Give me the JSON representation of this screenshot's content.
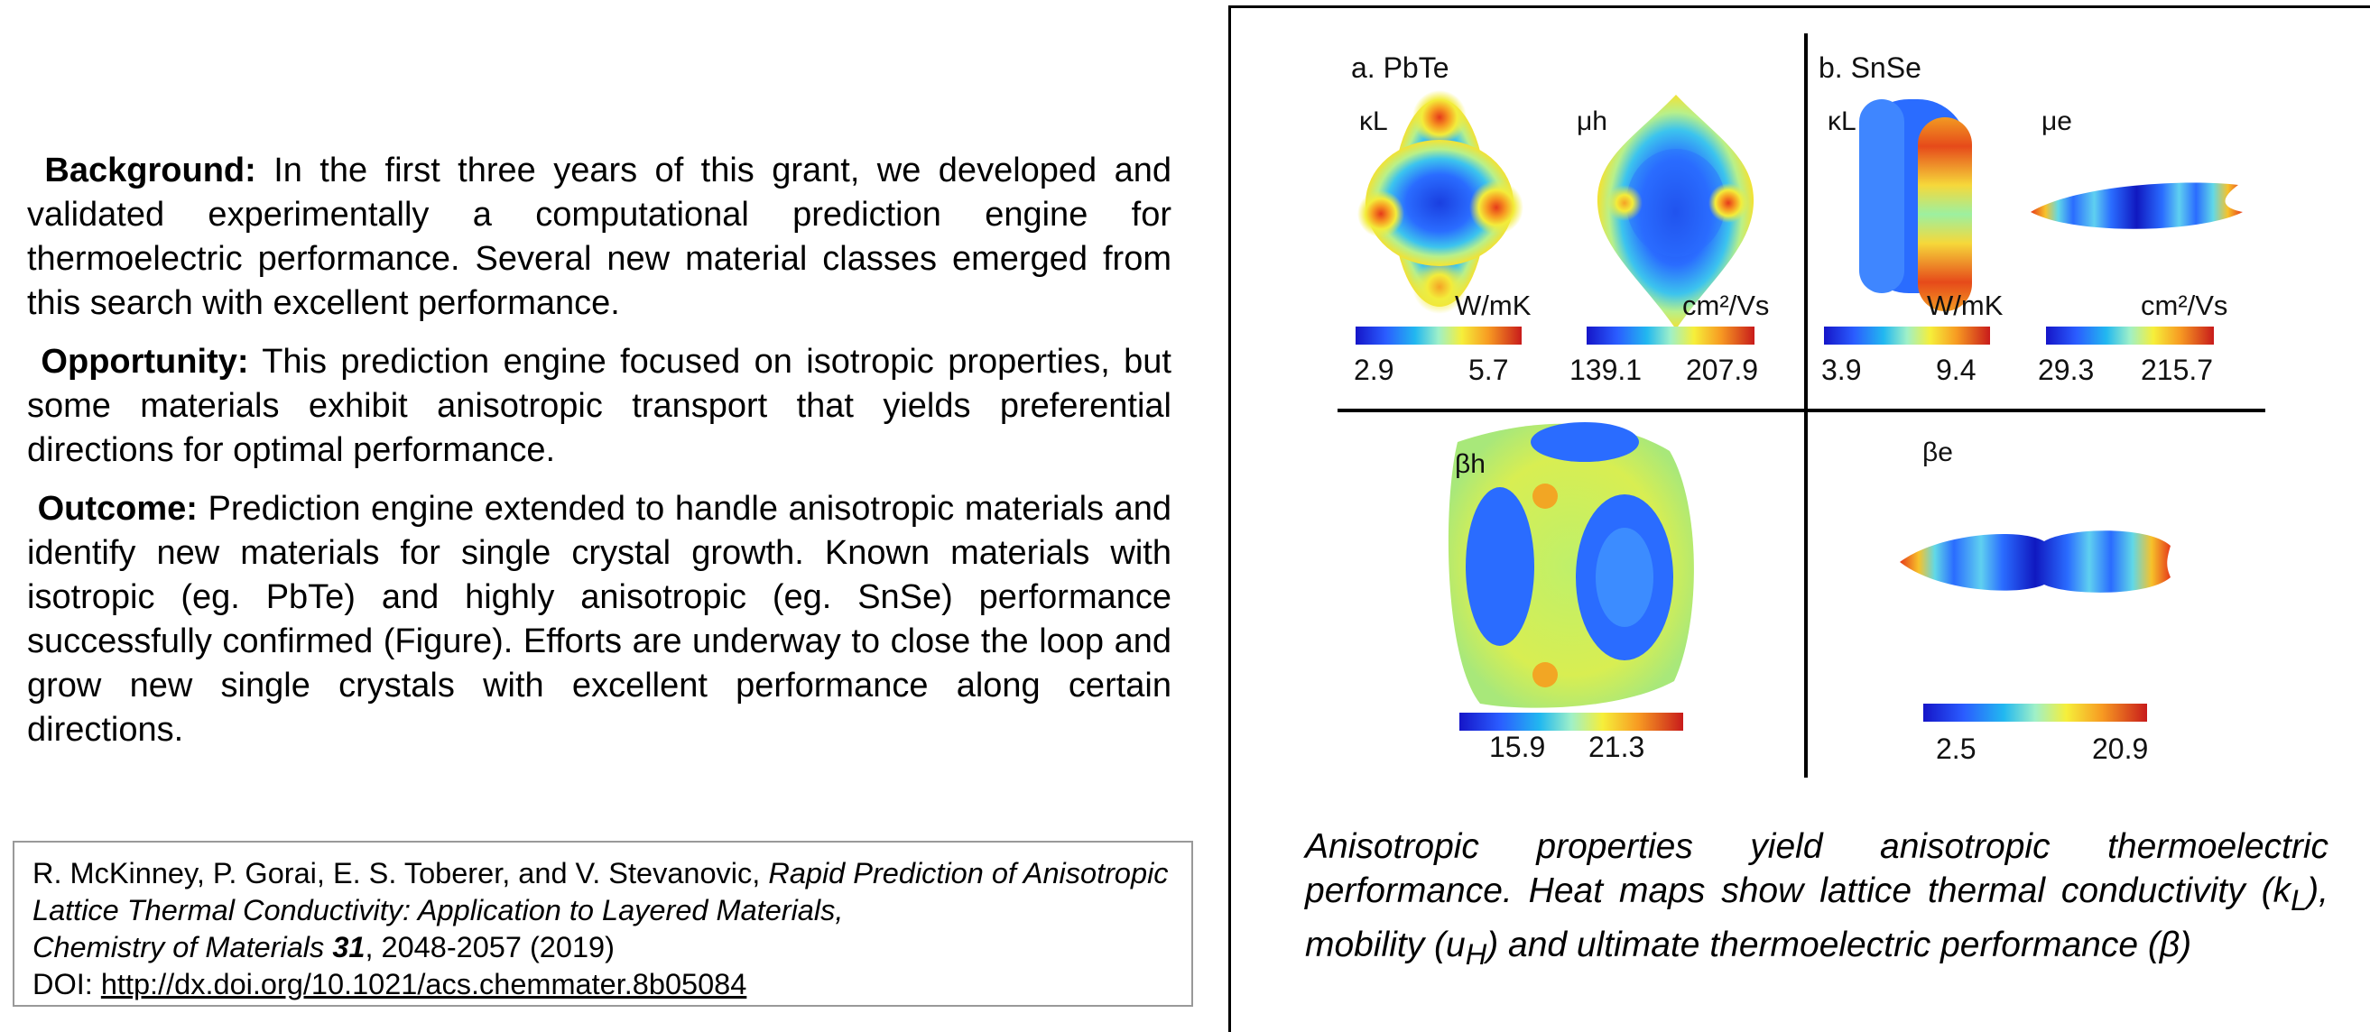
{
  "left": {
    "background": {
      "heading": "Background:",
      "text": " In the first three years of this grant, we developed and validated experimentally a computational prediction engine for thermoelectric performance. Several new material classes emerged from this search with excellent performance."
    },
    "opportunity": {
      "heading": "Opportunity:",
      "text": " This prediction engine focused on isotropic properties, but some materials exhibit anisotropic transport that yields preferential directions for optimal performance."
    },
    "outcome": {
      "heading": "Outcome:",
      "text": " Prediction engine extended to handle anisotropic materials and identify new materials for single crystal growth. Known materials with isotropic (eg. PbTe) and highly anisotropic (eg. SnSe) performance successfully confirmed (Figure).  Efforts are underway to close the loop and grow new single crystals with excellent performance along certain directions."
    }
  },
  "reference": {
    "authors": "R. McKinney, P. Gorai, E. S. Toberer, and V. Stevanovic, ",
    "title": "Rapid Prediction of Anisotropic Lattice Thermal Conductivity: Application to Layered Materials,",
    "journal": "Chemistry of Materials",
    "volume": "31",
    "pages": ", 2048-2057 (2019)",
    "doi_label": "DOI: ",
    "doi_link": "http://dx.doi.org/10.1021/acs.chemmater.8b05084"
  },
  "figure": {
    "label_a": "a. PbTe",
    "label_b": "b. SnSe",
    "sym_kl_a": "κL",
    "sym_mu_h": "μh",
    "sym_kl_b": "κL",
    "sym_mu_e": "μe",
    "sym_beta_h": "βh",
    "sym_beta_e": "βe",
    "unit_wmk_a": "W/mK",
    "unit_cm_a": "cm²/Vs",
    "unit_wmk_b": "W/mK",
    "unit_cm_b": "cm²/Vs",
    "ticks": {
      "kl_a_min": "2.9",
      "kl_a_max": "5.7",
      "mu_h_min": "139.1",
      "mu_h_max": "207.9",
      "kl_b_min": "3.9",
      "kl_b_max": "9.4",
      "mu_e_min": "29.3",
      "mu_e_max": "215.7",
      "beta_h_min": "15.9",
      "beta_h_max": "21.3",
      "beta_e_min": "2.5",
      "beta_e_max": "20.9"
    }
  },
  "caption": {
    "part1": "Anisotropic properties yield anisotropic thermoelectric performance. Heat maps show lattice thermal conductivity (k",
    "sub_l": "L",
    "part2": "), mobility (u",
    "sub_h": "H",
    "part3": ") and ultimate thermoelectric performance (",
    "beta": "β",
    "part4": ")"
  },
  "colors": {
    "colormap": [
      "#1515c8",
      "#2a5cff",
      "#22b8f0",
      "#9ff0c8",
      "#f6ef3a",
      "#f79a22",
      "#c81b1b"
    ]
  }
}
